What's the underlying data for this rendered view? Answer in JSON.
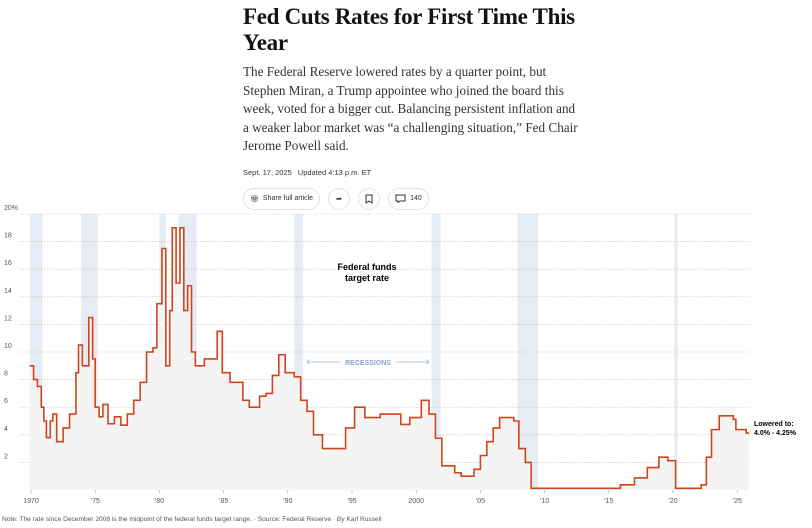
{
  "article": {
    "title": "Fed Cuts Rates for First Time This Year",
    "summary": "The Federal Reserve lowered rates by a quarter point, but Stephen Miran, a Trump appointee who joined the board this week, voted for a bigger cut. Balancing persistent inflation and a weaker labor market was “a challenging situation,” Fed Chair Jerome Powell said.",
    "date": "Sept. 17, 2025",
    "updated": "Updated 4:13 p.m. ET",
    "share_label": "Share full article",
    "comments_count": "140"
  },
  "chart_data": {
    "type": "line",
    "step": true,
    "title": "Federal funds target rate",
    "recession_label": "RECESSIONS",
    "end_annotation": [
      "Lowered to:",
      "4.0% - 4.25%"
    ],
    "xlim": [
      1970,
      2025.8
    ],
    "ylim": [
      0,
      20
    ],
    "y_ticks": [
      {
        "v": 2,
        "l": "2"
      },
      {
        "v": 4,
        "l": "4"
      },
      {
        "v": 6,
        "l": "6"
      },
      {
        "v": 8,
        "l": "8"
      },
      {
        "v": 10,
        "l": "10"
      },
      {
        "v": 12,
        "l": "12"
      },
      {
        "v": 14,
        "l": "14"
      },
      {
        "v": 16,
        "l": "16"
      },
      {
        "v": 18,
        "l": "18"
      },
      {
        "v": 20,
        "l": "20%"
      }
    ],
    "x_ticks": [
      {
        "v": 1970,
        "l": "1970"
      },
      {
        "v": 1975,
        "l": "’75"
      },
      {
        "v": 1980,
        "l": "’80"
      },
      {
        "v": 1985,
        "l": "’85"
      },
      {
        "v": 1990,
        "l": "’90"
      },
      {
        "v": 1995,
        "l": "’95"
      },
      {
        "v": 2000,
        "l": "2000"
      },
      {
        "v": 2005,
        "l": "’05"
      },
      {
        "v": 2010,
        "l": "’10"
      },
      {
        "v": 2015,
        "l": "’15"
      },
      {
        "v": 2020,
        "l": "’20"
      },
      {
        "v": 2025,
        "l": "’25"
      }
    ],
    "grid": true,
    "line_color": "#d0461c",
    "recession_color": "#e6ecf5",
    "recessions": [
      [
        1969.9,
        1970.9
      ],
      [
        1973.9,
        1975.2
      ],
      [
        1980.0,
        1980.5
      ],
      [
        1981.5,
        1982.9
      ],
      [
        1990.5,
        1991.2
      ],
      [
        2001.2,
        2001.9
      ],
      [
        2007.9,
        2009.5
      ],
      [
        2020.1,
        2020.35
      ]
    ],
    "points": [
      [
        1969.9,
        9
      ],
      [
        1970.2,
        8
      ],
      [
        1970.5,
        7.5
      ],
      [
        1970.8,
        6
      ],
      [
        1971.0,
        5
      ],
      [
        1971.2,
        3.8
      ],
      [
        1971.5,
        5
      ],
      [
        1971.7,
        5.5
      ],
      [
        1972.0,
        3.5
      ],
      [
        1972.5,
        4.5
      ],
      [
        1973.0,
        5.5
      ],
      [
        1973.5,
        8.5
      ],
      [
        1973.7,
        10.5
      ],
      [
        1974.0,
        9
      ],
      [
        1974.5,
        12.5
      ],
      [
        1974.8,
        9.5
      ],
      [
        1975.0,
        6
      ],
      [
        1975.3,
        5.3
      ],
      [
        1975.6,
        6.2
      ],
      [
        1976.0,
        4.8
      ],
      [
        1976.5,
        5.3
      ],
      [
        1977.0,
        4.7
      ],
      [
        1977.5,
        5.5
      ],
      [
        1978.0,
        6.5
      ],
      [
        1978.5,
        7.8
      ],
      [
        1979.0,
        10
      ],
      [
        1979.5,
        10.3
      ],
      [
        1979.8,
        13.5
      ],
      [
        1980.2,
        17.5
      ],
      [
        1980.5,
        9
      ],
      [
        1980.8,
        13
      ],
      [
        1981.0,
        19
      ],
      [
        1981.3,
        15
      ],
      [
        1981.6,
        19
      ],
      [
        1981.9,
        13
      ],
      [
        1982.2,
        14.8
      ],
      [
        1982.5,
        10
      ],
      [
        1982.8,
        9
      ],
      [
        1983.5,
        9.5
      ],
      [
        1984.5,
        11.5
      ],
      [
        1984.9,
        8.5
      ],
      [
        1985.5,
        7.8
      ],
      [
        1986.0,
        7.8
      ],
      [
        1986.5,
        6.5
      ],
      [
        1987.0,
        6
      ],
      [
        1987.8,
        6.8
      ],
      [
        1988.3,
        7
      ],
      [
        1988.8,
        8.3
      ],
      [
        1989.3,
        9.8
      ],
      [
        1989.8,
        8.5
      ],
      [
        1990.5,
        8.2
      ],
      [
        1991.0,
        6.5
      ],
      [
        1991.5,
        5.7
      ],
      [
        1992.0,
        4
      ],
      [
        1992.7,
        3
      ],
      [
        1994.0,
        3
      ],
      [
        1994.5,
        4.5
      ],
      [
        1995.2,
        6
      ],
      [
        1996.0,
        5.25
      ],
      [
        1997.2,
        5.5
      ],
      [
        1998.8,
        4.75
      ],
      [
        1999.5,
        5.25
      ],
      [
        2000.4,
        6.5
      ],
      [
        2001.0,
        5.5
      ],
      [
        2001.5,
        3.75
      ],
      [
        2002.0,
        1.75
      ],
      [
        2003.0,
        1.25
      ],
      [
        2003.5,
        1
      ],
      [
        2004.5,
        1.5
      ],
      [
        2005.0,
        2.5
      ],
      [
        2005.5,
        3.5
      ],
      [
        2006.0,
        4.5
      ],
      [
        2006.5,
        5.25
      ],
      [
        2007.6,
        5
      ],
      [
        2008.0,
        3
      ],
      [
        2008.5,
        2
      ],
      [
        2008.95,
        0.125
      ],
      [
        2015.9,
        0.375
      ],
      [
        2017.0,
        0.875
      ],
      [
        2018.0,
        1.625
      ],
      [
        2018.9,
        2.375
      ],
      [
        2019.6,
        2.125
      ],
      [
        2020.2,
        0.125
      ],
      [
        2022.2,
        0.375
      ],
      [
        2022.6,
        2.375
      ],
      [
        2023.0,
        4.375
      ],
      [
        2023.6,
        5.375
      ],
      [
        2024.7,
        5.125
      ],
      [
        2024.9,
        4.375
      ],
      [
        2025.7,
        4.125
      ]
    ]
  },
  "footer": {
    "note": "Note: The rate since December 2008 is the midpoint of the federal funds target range.",
    "source": "Source: Federal Reserve",
    "byline": "By Karl Russell"
  }
}
